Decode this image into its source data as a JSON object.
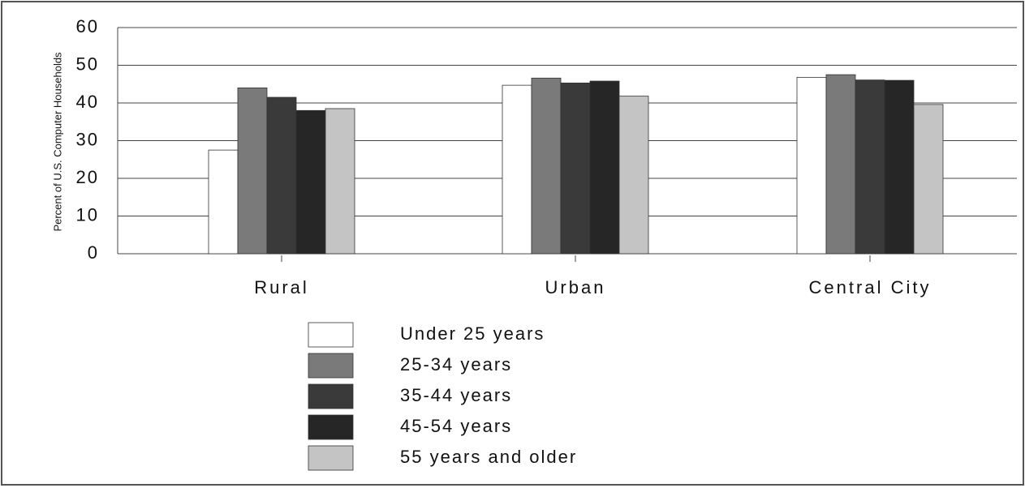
{
  "chart_data": {
    "type": "bar",
    "ylabel": "Percent of U.S. Computer Households",
    "categories": [
      "Rural",
      "Urban",
      "Central City"
    ],
    "series": [
      {
        "name": "Under 25 years",
        "color": "#ffffff",
        "values": [
          27.5,
          44.7,
          46.8
        ]
      },
      {
        "name": "25-34 years",
        "color": "#7a7a7a",
        "values": [
          44.0,
          46.6,
          47.5
        ]
      },
      {
        "name": "35-44 years",
        "color": "#3a3a3a",
        "values": [
          41.5,
          45.3,
          46.1
        ]
      },
      {
        "name": "45-54 years",
        "color": "#262626",
        "values": [
          38.0,
          45.8,
          46.0
        ]
      },
      {
        "name": "55 years and older",
        "color": "#c4c4c4",
        "values": [
          38.5,
          41.8,
          39.6
        ]
      }
    ],
    "ylim": [
      0,
      60
    ],
    "yticks": [
      0,
      10,
      20,
      30,
      40,
      50,
      60
    ],
    "grid": true
  }
}
